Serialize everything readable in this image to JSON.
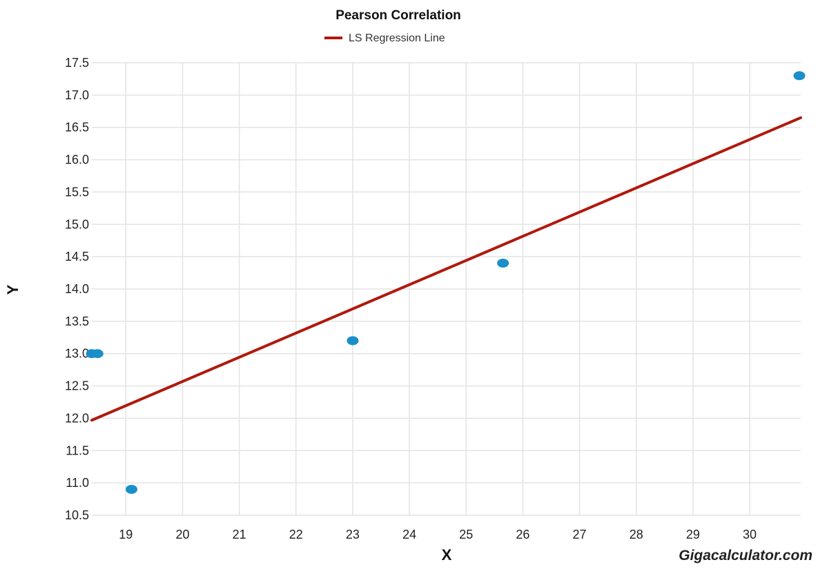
{
  "chart_data": {
    "type": "scatter",
    "title": "Pearson Correlation",
    "xlabel": "X",
    "ylabel": "Y",
    "xlim": [
      18.35,
      30.9
    ],
    "ylim": [
      10.5,
      17.5
    ],
    "x_ticks": [
      19,
      20,
      21,
      22,
      23,
      24,
      25,
      26,
      27,
      28,
      29,
      30
    ],
    "y_ticks": [
      "10.5",
      "11.0",
      "11.5",
      "12.0",
      "12.5",
      "13.0",
      "13.5",
      "14.0",
      "14.5",
      "15.0",
      "15.5",
      "16.0",
      "16.5",
      "17.0",
      "17.5"
    ],
    "grid": true,
    "points": [
      {
        "x": 18.4,
        "y": 13.0
      },
      {
        "x": 18.5,
        "y": 13.0
      },
      {
        "x": 19.1,
        "y": 10.9
      },
      {
        "x": 23.0,
        "y": 13.2
      },
      {
        "x": 25.65,
        "y": 14.4
      },
      {
        "x": 30.9,
        "y": 17.3
      }
    ],
    "regression_line": {
      "name": "LS Regression Line",
      "start": {
        "x": 18.4,
        "y": 11.97
      },
      "end": {
        "x": 30.9,
        "y": 16.65
      }
    },
    "legend": {
      "position": "top-center",
      "label": "LS Regression Line"
    },
    "watermark": "Gigacalculator.com"
  },
  "colors": {
    "points": "#1a8fc9",
    "line": "#b0190e",
    "grid": "#e3e3e3"
  }
}
